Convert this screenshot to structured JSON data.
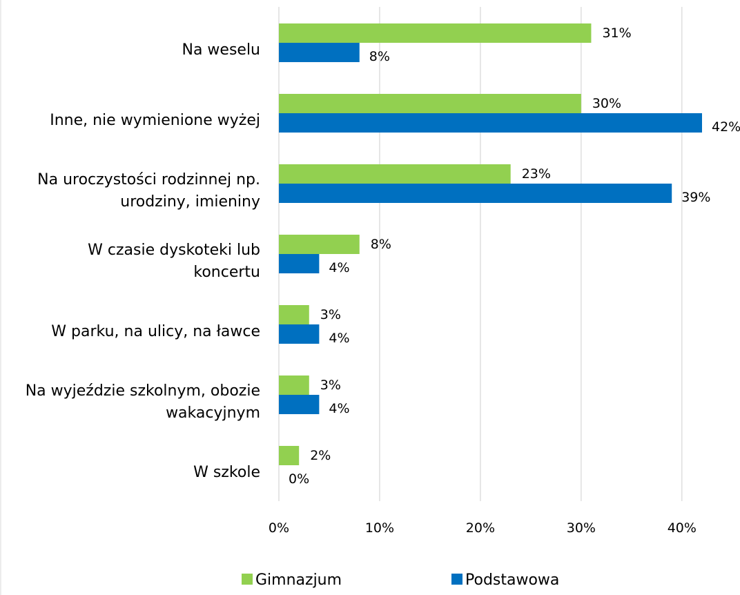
{
  "chart_data": {
    "type": "bar",
    "orientation": "horizontal",
    "categories": [
      [
        "Na weselu"
      ],
      [
        "Inne, nie wymienione wyżej"
      ],
      [
        "Na uroczystości rodzinnej np.",
        "urodziny, imieniny"
      ],
      [
        "W czasie dyskoteki lub",
        "koncertu"
      ],
      [
        "W parku, na ulicy, na ławce"
      ],
      [
        "Na wyjeździe szkolnym, obozie",
        "wakacyjnym"
      ],
      [
        "W szkole"
      ]
    ],
    "series": [
      {
        "name": "Gimnazjum",
        "color": "#92d050",
        "values": [
          31,
          30,
          23,
          8,
          3,
          3,
          2
        ],
        "labels": [
          "31%",
          "30%",
          "23%",
          "8%",
          "3%",
          "3%",
          "2%"
        ]
      },
      {
        "name": "Podstawowa",
        "color": "#0070c0",
        "values": [
          8,
          42,
          39,
          4,
          4,
          4,
          0
        ],
        "labels": [
          "8%",
          "42%",
          "39%",
          "4%",
          "4%",
          "4%",
          "0%"
        ]
      }
    ],
    "xlim": [
      0,
      42
    ],
    "xticks": [
      0,
      10,
      20,
      30,
      40
    ],
    "xtick_labels": [
      "0%",
      "10%",
      "20%",
      "30%",
      "40%"
    ],
    "grid": "vertical",
    "legend": "bottom",
    "title": "",
    "xlabel": "",
    "ylabel": ""
  }
}
